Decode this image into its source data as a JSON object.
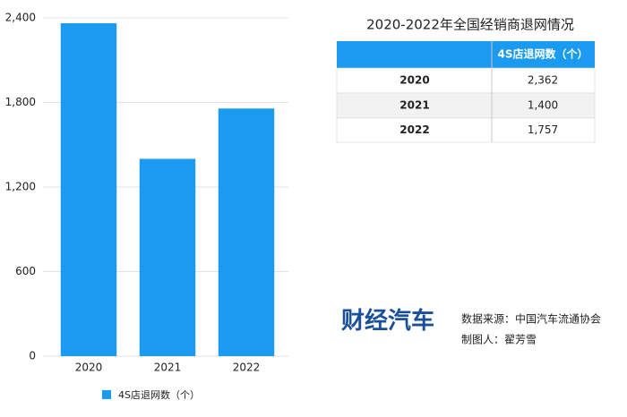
{
  "chart_data": {
    "type": "bar",
    "categories": [
      "2020",
      "2021",
      "2022"
    ],
    "series": [
      {
        "name": "4S店退网数（个）",
        "color": "#1a9bf0",
        "values": [
          2362,
          1400,
          1757
        ]
      }
    ],
    "ylim": [
      0,
      2400
    ],
    "yticks": [
      0,
      600,
      {
        "value": 1200,
        "label": "1,200"
      },
      {
        "value": 1800,
        "label": "1,800"
      },
      {
        "value": 2400,
        "label": "2,400"
      }
    ],
    "grid": true,
    "legend": "bottom"
  },
  "table": {
    "title": "2020-2022年全国经销商退网情况",
    "column_header": "4S店退网数（个）",
    "rows": [
      [
        "2020",
        "2,362"
      ],
      [
        "2021",
        "1,400"
      ],
      [
        "2022",
        "1,757"
      ]
    ]
  },
  "logo": {
    "text": "财经汽车"
  },
  "credits": {
    "source": "数据来源：中国汽车流通协会",
    "author": "制图人：翟芳雪"
  }
}
